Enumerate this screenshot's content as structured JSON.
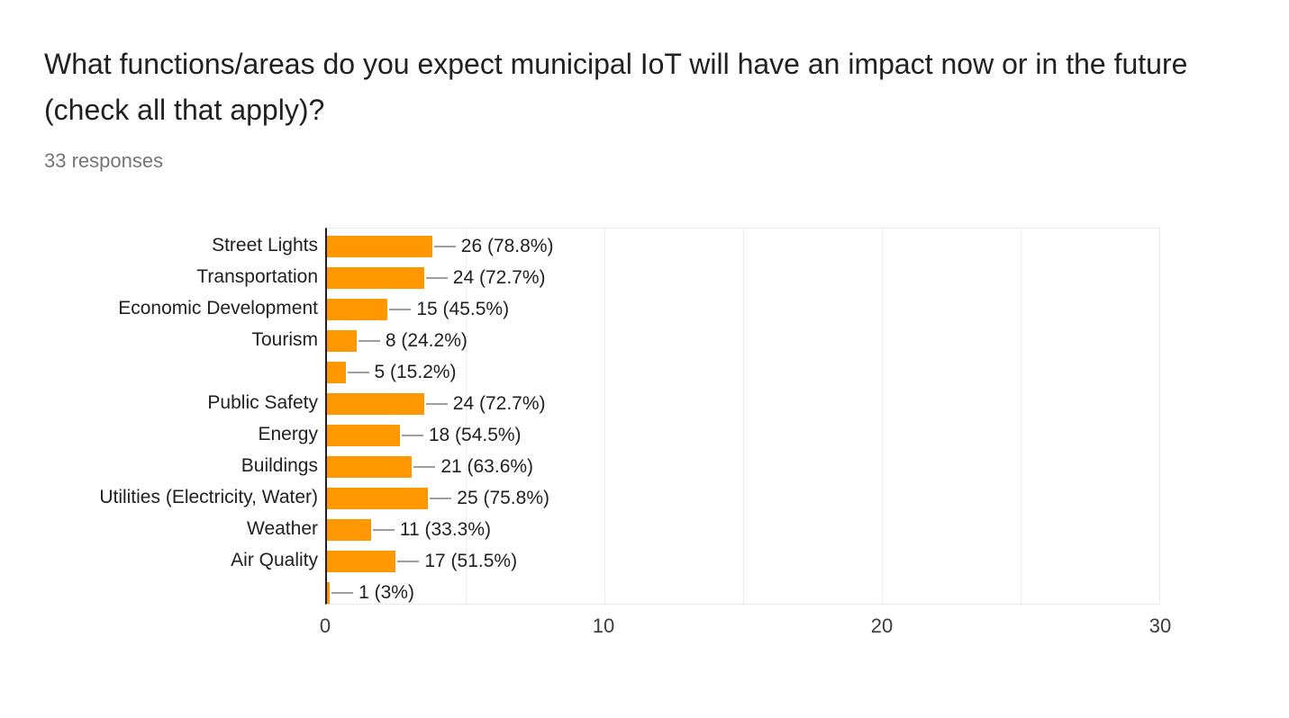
{
  "page": {
    "title": "What functions/areas do you expect municipal IoT will have an impact now or in the future (check all that apply)?",
    "responses_label": "33 responses"
  },
  "chart_data": {
    "type": "bar",
    "orientation": "horizontal",
    "title": "What functions/areas do you expect municipal IoT will have an impact now or in the future (check all that apply)?",
    "subtitle": "33 responses",
    "categories": [
      "Street Lights",
      "Transportation",
      "Economic Development",
      "Tourism",
      "",
      "Public Safety",
      "Energy",
      "Buildings",
      "Utilities (Electricity, Water)",
      "Weather",
      "Air Quality",
      ""
    ],
    "values": [
      26,
      24,
      15,
      8,
      5,
      24,
      18,
      21,
      25,
      11,
      17,
      1
    ],
    "value_labels": [
      "26 (78.8%)",
      "24 (72.7%)",
      "15 (45.5%)",
      "8 (24.2%)",
      "5 (15.2%)",
      "24 (72.7%)",
      "18 (54.5%)",
      "21 (63.6%)",
      "25 (75.8%)",
      "11 (33.3%)",
      "17 (51.5%)",
      "1 (3%)"
    ],
    "xlabel": "",
    "ylabel": "",
    "xlim": [
      0,
      30
    ],
    "x_ticks": [
      0,
      10,
      20,
      30
    ],
    "gridline_values": [
      5,
      10,
      15,
      20,
      25
    ],
    "grid": true,
    "legend": "none",
    "bar_color": "#FF9800"
  },
  "colors": {
    "bar": "#FF9800",
    "title_text": "#212121",
    "subtitle_text": "#757575",
    "leader_line": "#9e9e9e",
    "gridline": "#eeeeee",
    "axis_line": "#1f1f1f"
  }
}
